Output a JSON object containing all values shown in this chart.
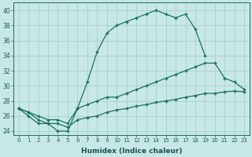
{
  "bg_color": "#c8e8e5",
  "line_color": "#1a7060",
  "grid_color": "#a0ccc8",
  "xlim": [
    -0.5,
    23.5
  ],
  "ylim": [
    23.5,
    41.0
  ],
  "xticks": [
    0,
    1,
    2,
    3,
    4,
    5,
    6,
    7,
    8,
    9,
    10,
    11,
    12,
    13,
    14,
    15,
    16,
    17,
    18,
    19,
    20,
    21,
    22,
    23
  ],
  "yticks": [
    24,
    26,
    28,
    30,
    32,
    34,
    36,
    38,
    40
  ],
  "xlabel": "Humidex (Indice chaleur)",
  "line1_x": [
    0,
    1,
    2,
    3,
    4,
    5,
    6,
    7,
    8,
    9,
    10,
    11,
    12,
    13,
    14,
    15,
    16,
    17,
    18,
    19
  ],
  "line1_y": [
    27,
    26,
    25,
    25,
    24,
    24,
    27,
    30.5,
    34.5,
    37,
    38,
    38.5,
    39,
    39.5,
    40,
    39.5,
    39,
    39.5,
    37.5,
    34
  ],
  "line2_x": [
    0,
    1,
    2,
    3,
    4,
    5,
    6,
    7,
    8,
    9,
    10,
    11,
    12,
    13,
    14,
    15,
    16,
    17,
    18,
    19,
    20,
    21,
    22,
    23
  ],
  "line2_y": [
    27,
    26.5,
    26,
    25.5,
    25.5,
    25,
    27,
    27.5,
    28,
    28.5,
    28.5,
    29,
    29.5,
    30,
    30.5,
    31,
    31.5,
    32,
    32.5,
    33,
    33,
    31,
    30.5,
    29.5
  ],
  "line3_x": [
    0,
    1,
    2,
    3,
    4,
    5,
    6,
    7,
    8,
    9,
    10,
    11,
    12,
    13,
    14,
    15,
    16,
    17,
    18,
    19,
    20,
    21,
    22,
    23
  ],
  "line3_y": [
    27,
    26.5,
    25.5,
    25,
    25,
    24.5,
    25.5,
    25.8,
    26,
    26.5,
    26.8,
    27,
    27.3,
    27.5,
    27.8,
    28,
    28.2,
    28.5,
    28.7,
    29,
    29,
    29.2,
    29.3,
    29.2
  ]
}
